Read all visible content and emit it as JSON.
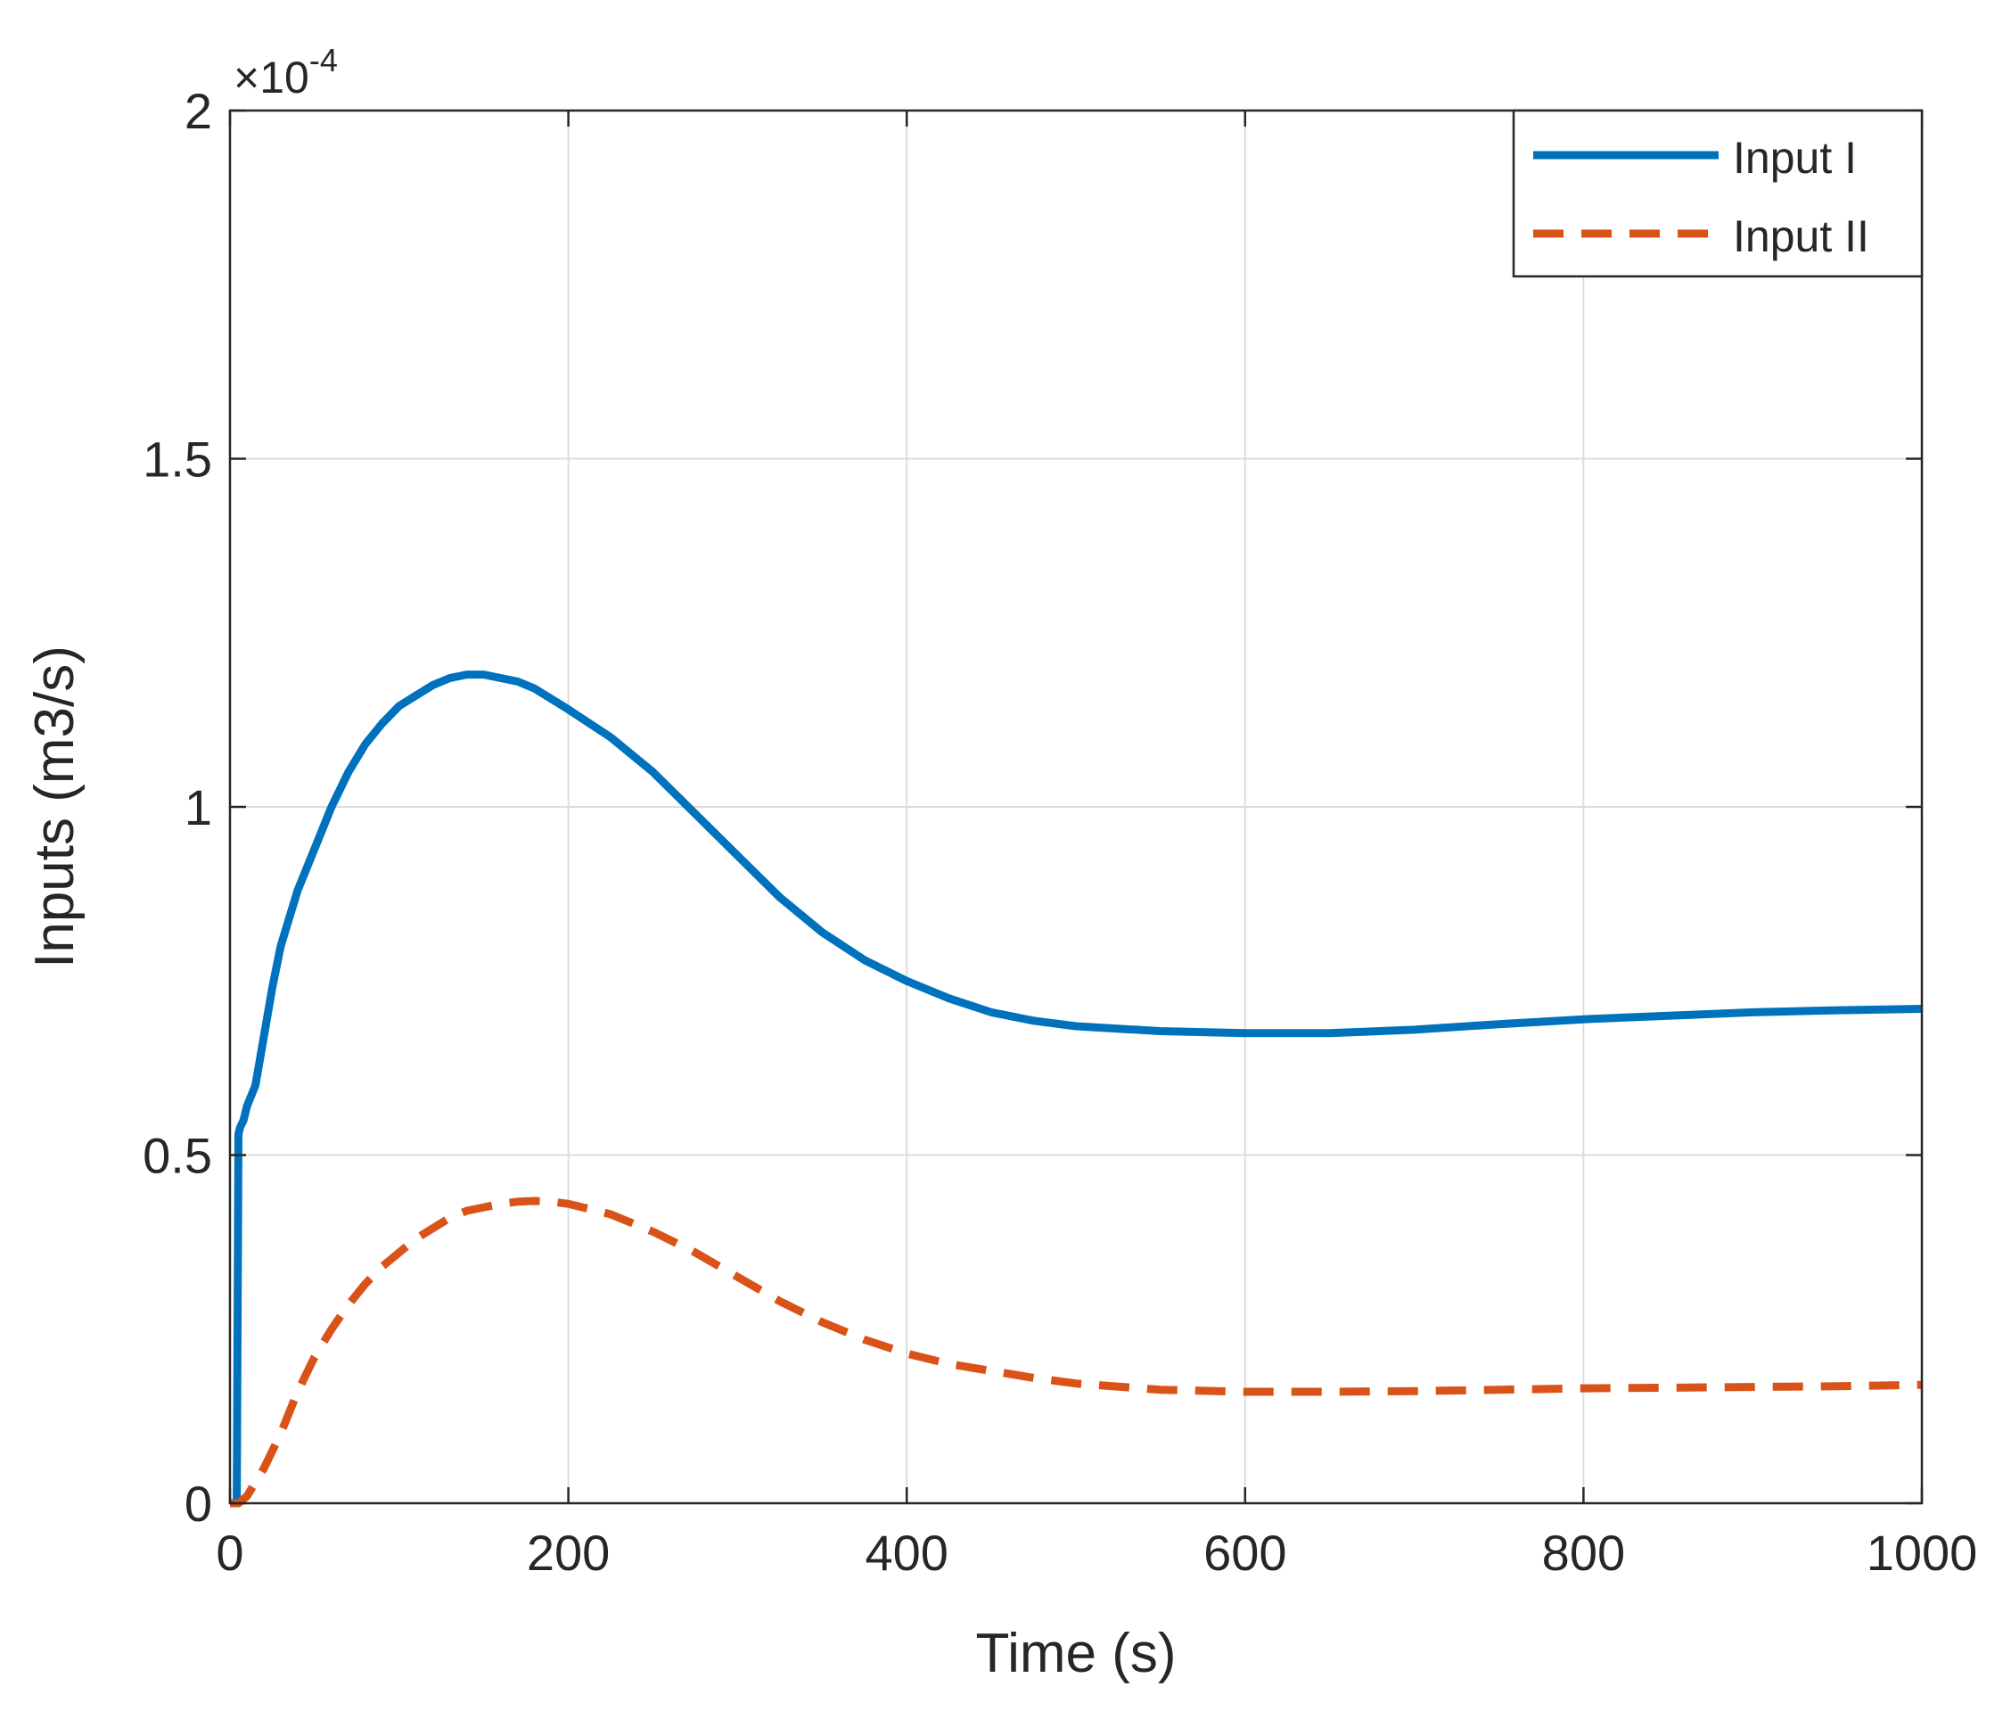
{
  "chart_data": {
    "type": "line",
    "title": "",
    "xlabel": "Time (s)",
    "ylabel": "Inputs (m3/s)",
    "xlim": [
      0,
      1000
    ],
    "ylim": [
      0,
      2
    ],
    "y_exponent_label": "×10",
    "y_exponent_power": "-4",
    "grid": true,
    "legend_position": "top-right",
    "x_ticks": [
      0,
      200,
      400,
      600,
      800,
      1000
    ],
    "x_tick_labels": [
      "0",
      "200",
      "400",
      "600",
      "800",
      "1000"
    ],
    "y_ticks": [
      0,
      0.5,
      1,
      1.5,
      2
    ],
    "y_tick_labels": [
      "0",
      "0.5",
      "1",
      "1.5",
      "2"
    ],
    "series": [
      {
        "name": "Input I",
        "color": "#0072BD",
        "style": "solid",
        "x": [
          0,
          4,
          5,
          6,
          8,
          10,
          15,
          20,
          25,
          30,
          40,
          50,
          60,
          70,
          80,
          90,
          100,
          110,
          120,
          130,
          140,
          150,
          160,
          170,
          180,
          190,
          200,
          225,
          250,
          275,
          300,
          325,
          350,
          375,
          400,
          425,
          450,
          475,
          500,
          550,
          600,
          650,
          700,
          750,
          800,
          850,
          900,
          950,
          1000
        ],
        "values": [
          0,
          0,
          0.53,
          0.54,
          0.55,
          0.57,
          0.6,
          0.67,
          0.74,
          0.8,
          0.88,
          0.94,
          1.0,
          1.05,
          1.09,
          1.12,
          1.145,
          1.16,
          1.175,
          1.185,
          1.19,
          1.19,
          1.185,
          1.18,
          1.17,
          1.155,
          1.14,
          1.1,
          1.05,
          0.99,
          0.93,
          0.87,
          0.82,
          0.78,
          0.75,
          0.725,
          0.705,
          0.693,
          0.685,
          0.678,
          0.675,
          0.675,
          0.68,
          0.688,
          0.695,
          0.7,
          0.705,
          0.708,
          0.71
        ]
      },
      {
        "name": "Input II",
        "color": "#D95319",
        "style": "dashed",
        "x": [
          0,
          5,
          10,
          20,
          30,
          40,
          50,
          60,
          70,
          80,
          90,
          100,
          110,
          120,
          130,
          140,
          150,
          160,
          170,
          180,
          190,
          200,
          225,
          250,
          275,
          300,
          325,
          350,
          375,
          400,
          425,
          450,
          475,
          500,
          550,
          600,
          650,
          700,
          750,
          800,
          850,
          900,
          950,
          1000
        ],
        "values": [
          0,
          0.0,
          0.01,
          0.05,
          0.1,
          0.16,
          0.21,
          0.25,
          0.285,
          0.315,
          0.34,
          0.36,
          0.38,
          0.395,
          0.41,
          0.42,
          0.425,
          0.43,
          0.433,
          0.434,
          0.433,
          0.43,
          0.415,
          0.39,
          0.36,
          0.325,
          0.29,
          0.26,
          0.235,
          0.215,
          0.2,
          0.19,
          0.18,
          0.172,
          0.163,
          0.16,
          0.16,
          0.161,
          0.163,
          0.165,
          0.166,
          0.167,
          0.168,
          0.17
        ]
      }
    ]
  }
}
